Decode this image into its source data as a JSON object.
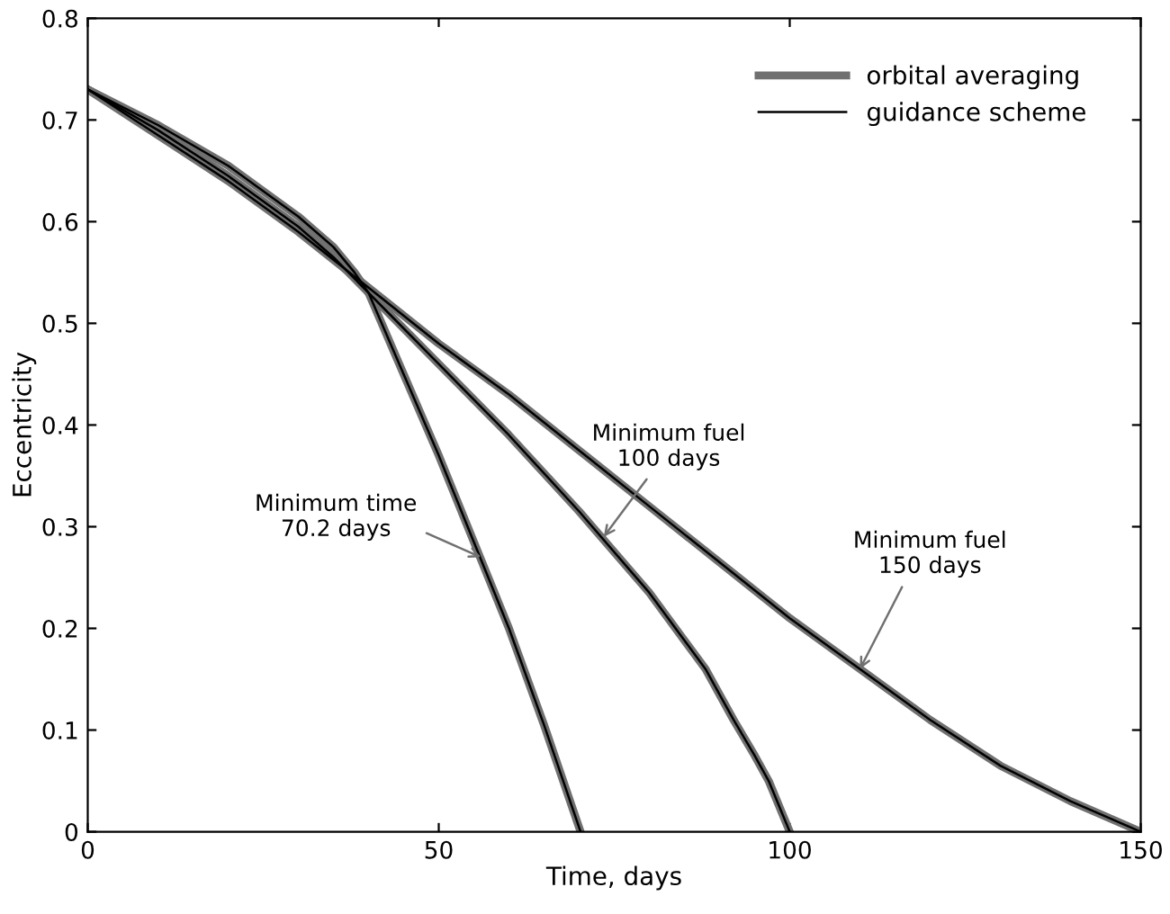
{
  "chart_data": {
    "type": "line",
    "xlabel": "Time, days",
    "ylabel": "Eccentricity",
    "xlim": [
      0,
      150
    ],
    "ylim": [
      0,
      0.8
    ],
    "xticks": [
      0,
      50,
      100,
      150
    ],
    "yticks": [
      0,
      0.1,
      0.2,
      0.3,
      0.4,
      0.5,
      0.6,
      0.7,
      0.8
    ],
    "grid": false,
    "legend": "top right",
    "marker": "none",
    "line_style": "solid",
    "series": [
      {
        "name": "orbital averaging",
        "color": "#707070",
        "x": [
          0,
          10,
          20,
          30,
          35,
          38,
          40,
          45,
          50,
          55,
          60,
          65,
          70.2
        ],
        "values": [
          0.73,
          0.695,
          0.655,
          0.605,
          0.575,
          0.55,
          0.53,
          0.45,
          0.37,
          0.285,
          0.2,
          0.105,
          0
        ]
      },
      {
        "name": "guidance scheme",
        "color": "#000000",
        "x": [
          0,
          10,
          20,
          30,
          35,
          38,
          40,
          45,
          50,
          55,
          60,
          65,
          70.2
        ],
        "values": [
          0.73,
          0.695,
          0.655,
          0.605,
          0.575,
          0.55,
          0.53,
          0.45,
          0.37,
          0.285,
          0.2,
          0.105,
          0
        ]
      },
      {
        "color": "#707070",
        "x": [
          0,
          10,
          20,
          30,
          35,
          40,
          50,
          60,
          70,
          80,
          88,
          92,
          95,
          97,
          100
        ],
        "values": [
          0.73,
          0.69,
          0.645,
          0.595,
          0.565,
          0.53,
          0.46,
          0.39,
          0.315,
          0.235,
          0.16,
          0.11,
          0.075,
          0.05,
          0
        ]
      },
      {
        "color": "#000000",
        "x": [
          0,
          10,
          20,
          30,
          35,
          40,
          50,
          60,
          70,
          80,
          88,
          92,
          95,
          97,
          100
        ],
        "values": [
          0.73,
          0.69,
          0.645,
          0.595,
          0.565,
          0.53,
          0.46,
          0.39,
          0.315,
          0.235,
          0.16,
          0.11,
          0.075,
          0.05,
          0
        ]
      },
      {
        "color": "#707070",
        "x": [
          0,
          10,
          20,
          30,
          40,
          50,
          60,
          70,
          80,
          90,
          100,
          110,
          120,
          130,
          140,
          150
        ],
        "values": [
          0.73,
          0.685,
          0.64,
          0.59,
          0.535,
          0.48,
          0.43,
          0.375,
          0.32,
          0.265,
          0.21,
          0.16,
          0.11,
          0.065,
          0.03,
          0
        ]
      },
      {
        "color": "#000000",
        "x": [
          0,
          10,
          20,
          30,
          40,
          50,
          60,
          70,
          80,
          90,
          100,
          110,
          120,
          130,
          140,
          150
        ],
        "values": [
          0.73,
          0.685,
          0.64,
          0.59,
          0.535,
          0.48,
          0.43,
          0.375,
          0.32,
          0.265,
          0.21,
          0.16,
          0.11,
          0.065,
          0.03,
          0
        ]
      }
    ],
    "annotations": [
      {
        "text": "Minimum time\n70.2 days",
        "x": 56,
        "y": 0.27
      },
      {
        "text": "Minimum fuel\n100 days",
        "x": 73.5,
        "y": 0.29
      },
      {
        "text": "Minimum fuel\n150 days",
        "x": 110,
        "y": 0.16
      }
    ]
  }
}
